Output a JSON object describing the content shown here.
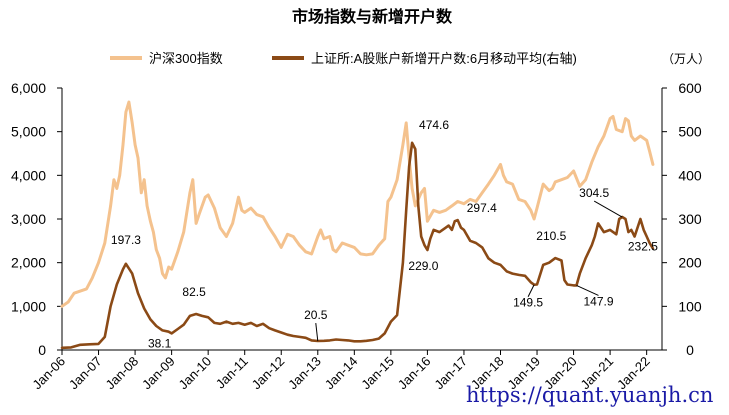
{
  "chart_data": {
    "type": "line",
    "title": "市场指数与新增开户数",
    "unit_right": "（万人）",
    "legend_position": "top",
    "grid": false,
    "colors": {
      "csi300": "#F4C28E",
      "accounts": "#8B4A16",
      "watermark": "#1A1AA6"
    },
    "left_axis": {
      "min": 0,
      "max": 6000,
      "ticks": [
        "0",
        "1,000",
        "2,000",
        "3,000",
        "4,000",
        "5,000",
        "6,000"
      ]
    },
    "right_axis": {
      "min": 0,
      "max": 600,
      "ticks": [
        "0",
        "100",
        "200",
        "300",
        "400",
        "500",
        "600"
      ]
    },
    "x_ticks": [
      "Jan-06",
      "Jan-07",
      "Jan-08",
      "Jan-09",
      "Jan-10",
      "Jan-11",
      "Jan-12",
      "Jan-13",
      "Jan-14",
      "Jan-15",
      "Jan-16",
      "Jan-17",
      "Jan-18",
      "Jan-19",
      "Jan-20",
      "Jan-21",
      "Jan-22"
    ],
    "series": [
      {
        "name": "沪深300指数",
        "axis": "left",
        "points": [
          [
            2006.0,
            1000
          ],
          [
            2006.17,
            1100
          ],
          [
            2006.33,
            1300
          ],
          [
            2006.5,
            1350
          ],
          [
            2006.67,
            1400
          ],
          [
            2006.83,
            1650
          ],
          [
            2007.0,
            2000
          ],
          [
            2007.17,
            2450
          ],
          [
            2007.33,
            3300
          ],
          [
            2007.42,
            3900
          ],
          [
            2007.5,
            3700
          ],
          [
            2007.58,
            4000
          ],
          [
            2007.67,
            4700
          ],
          [
            2007.75,
            5450
          ],
          [
            2007.83,
            5680
          ],
          [
            2007.92,
            5200
          ],
          [
            2008.0,
            4700
          ],
          [
            2008.08,
            4400
          ],
          [
            2008.17,
            3600
          ],
          [
            2008.25,
            3900
          ],
          [
            2008.33,
            3300
          ],
          [
            2008.42,
            2950
          ],
          [
            2008.5,
            2700
          ],
          [
            2008.58,
            2300
          ],
          [
            2008.67,
            2100
          ],
          [
            2008.75,
            1750
          ],
          [
            2008.83,
            1650
          ],
          [
            2008.92,
            1900
          ],
          [
            2009.0,
            1850
          ],
          [
            2009.17,
            2250
          ],
          [
            2009.33,
            2700
          ],
          [
            2009.5,
            3600
          ],
          [
            2009.58,
            3900
          ],
          [
            2009.67,
            2900
          ],
          [
            2009.75,
            3100
          ],
          [
            2009.92,
            3500
          ],
          [
            2010.0,
            3550
          ],
          [
            2010.17,
            3250
          ],
          [
            2010.33,
            2800
          ],
          [
            2010.5,
            2600
          ],
          [
            2010.67,
            2900
          ],
          [
            2010.83,
            3500
          ],
          [
            2010.92,
            3200
          ],
          [
            2011.0,
            3150
          ],
          [
            2011.17,
            3250
          ],
          [
            2011.33,
            3100
          ],
          [
            2011.5,
            3050
          ],
          [
            2011.67,
            2800
          ],
          [
            2011.83,
            2600
          ],
          [
            2012.0,
            2350
          ],
          [
            2012.17,
            2650
          ],
          [
            2012.33,
            2600
          ],
          [
            2012.5,
            2400
          ],
          [
            2012.67,
            2250
          ],
          [
            2012.83,
            2200
          ],
          [
            2013.0,
            2600
          ],
          [
            2013.08,
            2750
          ],
          [
            2013.17,
            2550
          ],
          [
            2013.33,
            2600
          ],
          [
            2013.42,
            2300
          ],
          [
            2013.5,
            2250
          ],
          [
            2013.67,
            2450
          ],
          [
            2013.83,
            2400
          ],
          [
            2014.0,
            2350
          ],
          [
            2014.17,
            2200
          ],
          [
            2014.33,
            2180
          ],
          [
            2014.5,
            2200
          ],
          [
            2014.67,
            2400
          ],
          [
            2014.83,
            2550
          ],
          [
            2014.92,
            3400
          ],
          [
            2015.0,
            3500
          ],
          [
            2015.17,
            3900
          ],
          [
            2015.33,
            4700
          ],
          [
            2015.42,
            5200
          ],
          [
            2015.5,
            4400
          ],
          [
            2015.58,
            3700
          ],
          [
            2015.67,
            3300
          ],
          [
            2015.83,
            3600
          ],
          [
            2015.92,
            3700
          ],
          [
            2016.0,
            2950
          ],
          [
            2016.17,
            3200
          ],
          [
            2016.33,
            3150
          ],
          [
            2016.5,
            3200
          ],
          [
            2016.67,
            3300
          ],
          [
            2016.83,
            3400
          ],
          [
            2017.0,
            3350
          ],
          [
            2017.17,
            3450
          ],
          [
            2017.33,
            3400
          ],
          [
            2017.5,
            3600
          ],
          [
            2017.67,
            3800
          ],
          [
            2017.83,
            4000
          ],
          [
            2018.0,
            4250
          ],
          [
            2018.08,
            4000
          ],
          [
            2018.17,
            3850
          ],
          [
            2018.33,
            3800
          ],
          [
            2018.5,
            3450
          ],
          [
            2018.67,
            3400
          ],
          [
            2018.83,
            3200
          ],
          [
            2018.92,
            3000
          ],
          [
            2019.0,
            3250
          ],
          [
            2019.17,
            3800
          ],
          [
            2019.33,
            3650
          ],
          [
            2019.42,
            3700
          ],
          [
            2019.5,
            3850
          ],
          [
            2019.67,
            3900
          ],
          [
            2019.83,
            3950
          ],
          [
            2020.0,
            4100
          ],
          [
            2020.17,
            3750
          ],
          [
            2020.33,
            3900
          ],
          [
            2020.5,
            4300
          ],
          [
            2020.67,
            4650
          ],
          [
            2020.83,
            4900
          ],
          [
            2021.0,
            5300
          ],
          [
            2021.08,
            5350
          ],
          [
            2021.17,
            5050
          ],
          [
            2021.33,
            5000
          ],
          [
            2021.42,
            5300
          ],
          [
            2021.5,
            5250
          ],
          [
            2021.58,
            4900
          ],
          [
            2021.67,
            4800
          ],
          [
            2021.83,
            4900
          ],
          [
            2022.0,
            4800
          ],
          [
            2022.08,
            4550
          ],
          [
            2022.17,
            4250
          ]
        ]
      },
      {
        "name": "上证所:A股账户新增开户数:6月移动平均(右轴)",
        "axis": "right",
        "points": [
          [
            2006.0,
            5
          ],
          [
            2006.25,
            6
          ],
          [
            2006.5,
            12
          ],
          [
            2006.75,
            13
          ],
          [
            2007.0,
            14
          ],
          [
            2007.17,
            30
          ],
          [
            2007.33,
            100
          ],
          [
            2007.5,
            150
          ],
          [
            2007.67,
            185
          ],
          [
            2007.75,
            197.3
          ],
          [
            2007.92,
            175
          ],
          [
            2008.08,
            130
          ],
          [
            2008.25,
            95
          ],
          [
            2008.42,
            70
          ],
          [
            2008.58,
            55
          ],
          [
            2008.75,
            45
          ],
          [
            2008.92,
            42
          ],
          [
            2009.0,
            38.1
          ],
          [
            2009.17,
            48
          ],
          [
            2009.33,
            58
          ],
          [
            2009.5,
            78
          ],
          [
            2009.67,
            82.5
          ],
          [
            2009.83,
            78
          ],
          [
            2010.0,
            75
          ],
          [
            2010.17,
            62
          ],
          [
            2010.33,
            60
          ],
          [
            2010.5,
            65
          ],
          [
            2010.67,
            60
          ],
          [
            2010.83,
            62
          ],
          [
            2011.0,
            58
          ],
          [
            2011.17,
            62
          ],
          [
            2011.33,
            55
          ],
          [
            2011.5,
            60
          ],
          [
            2011.67,
            50
          ],
          [
            2011.83,
            45
          ],
          [
            2012.0,
            40
          ],
          [
            2012.17,
            35
          ],
          [
            2012.33,
            32
          ],
          [
            2012.5,
            30
          ],
          [
            2012.67,
            28
          ],
          [
            2012.83,
            22
          ],
          [
            2013.0,
            20.5
          ],
          [
            2013.17,
            21
          ],
          [
            2013.33,
            22
          ],
          [
            2013.5,
            24
          ],
          [
            2013.67,
            23
          ],
          [
            2013.83,
            22
          ],
          [
            2014.0,
            20
          ],
          [
            2014.17,
            20
          ],
          [
            2014.33,
            21
          ],
          [
            2014.5,
            23
          ],
          [
            2014.67,
            26
          ],
          [
            2014.83,
            38
          ],
          [
            2015.0,
            65
          ],
          [
            2015.17,
            80
          ],
          [
            2015.33,
            200
          ],
          [
            2015.42,
            320
          ],
          [
            2015.5,
            420
          ],
          [
            2015.58,
            474.6
          ],
          [
            2015.67,
            460
          ],
          [
            2015.75,
            330
          ],
          [
            2015.83,
            260
          ],
          [
            2015.92,
            240
          ],
          [
            2016.0,
            229.0
          ],
          [
            2016.08,
            255
          ],
          [
            2016.17,
            275
          ],
          [
            2016.33,
            270
          ],
          [
            2016.5,
            280
          ],
          [
            2016.58,
            285
          ],
          [
            2016.67,
            275
          ],
          [
            2016.75,
            295
          ],
          [
            2016.83,
            297.4
          ],
          [
            2016.92,
            280
          ],
          [
            2017.0,
            275
          ],
          [
            2017.17,
            250
          ],
          [
            2017.33,
            245
          ],
          [
            2017.5,
            235
          ],
          [
            2017.67,
            210
          ],
          [
            2017.83,
            200
          ],
          [
            2018.0,
            195
          ],
          [
            2018.17,
            180
          ],
          [
            2018.33,
            175
          ],
          [
            2018.5,
            172
          ],
          [
            2018.67,
            170
          ],
          [
            2018.83,
            155
          ],
          [
            2018.92,
            149.5
          ],
          [
            2019.0,
            150
          ],
          [
            2019.17,
            195
          ],
          [
            2019.33,
            200
          ],
          [
            2019.5,
            210.5
          ],
          [
            2019.67,
            205
          ],
          [
            2019.75,
            160
          ],
          [
            2019.83,
            150
          ],
          [
            2020.0,
            148
          ],
          [
            2020.08,
            147.9
          ],
          [
            2020.17,
            175
          ],
          [
            2020.33,
            210
          ],
          [
            2020.5,
            240
          ],
          [
            2020.58,
            260
          ],
          [
            2020.67,
            290
          ],
          [
            2020.83,
            270
          ],
          [
            2021.0,
            275
          ],
          [
            2021.17,
            265
          ],
          [
            2021.25,
            300
          ],
          [
            2021.33,
            304.5
          ],
          [
            2021.42,
            300
          ],
          [
            2021.5,
            270
          ],
          [
            2021.58,
            275
          ],
          [
            2021.67,
            260
          ],
          [
            2021.83,
            300
          ],
          [
            2021.92,
            275
          ],
          [
            2022.0,
            260
          ],
          [
            2022.08,
            245
          ],
          [
            2022.17,
            232.5
          ]
        ]
      }
    ],
    "annotations": [
      {
        "label": "197.3",
        "x": 2007.75,
        "y": 197.3,
        "axis": "right"
      },
      {
        "label": "82.5",
        "x": 2009.67,
        "y": 82.5,
        "axis": "right"
      },
      {
        "label": "38.1",
        "x": 2009.0,
        "y": 38.1,
        "axis": "right"
      },
      {
        "label": "20.5",
        "x": 2013.0,
        "y": 20.5,
        "axis": "right"
      },
      {
        "label": "474.6",
        "x": 2015.58,
        "y": 474.6,
        "axis": "right"
      },
      {
        "label": "229.0",
        "x": 2016.0,
        "y": 229.0,
        "axis": "right"
      },
      {
        "label": "297.4",
        "x": 2016.83,
        "y": 297.4,
        "axis": "right"
      },
      {
        "label": "149.5",
        "x": 2018.92,
        "y": 149.5,
        "axis": "right"
      },
      {
        "label": "210.5",
        "x": 2019.5,
        "y": 210.5,
        "axis": "right"
      },
      {
        "label": "147.9",
        "x": 2020.08,
        "y": 147.9,
        "axis": "right"
      },
      {
        "label": "304.5",
        "x": 2021.33,
        "y": 304.5,
        "axis": "right"
      },
      {
        "label": "232.5",
        "x": 2022.17,
        "y": 232.5,
        "axis": "right"
      }
    ]
  },
  "watermark": "https://quant.yuanjh.cn"
}
